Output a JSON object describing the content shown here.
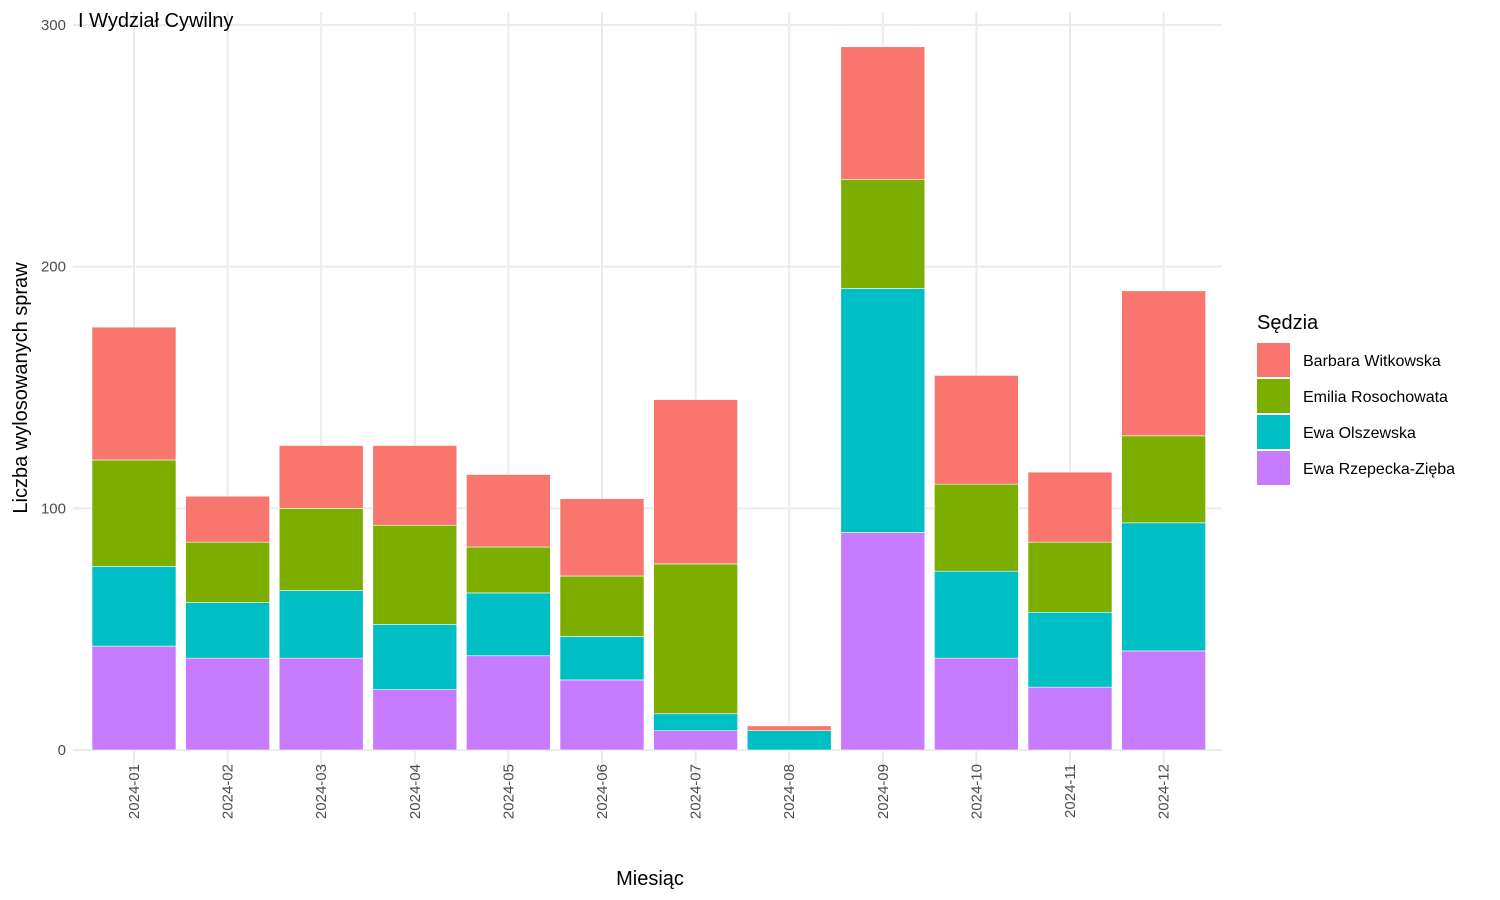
{
  "chart_data": {
    "type": "bar",
    "stacked": true,
    "title": "I Wydział Cywilny",
    "xlabel": "Miesiąc",
    "ylabel": "Liczba wylosowanych spraw",
    "ylim": [
      0,
      300
    ],
    "yticks": [
      0,
      100,
      200,
      300
    ],
    "grid": true,
    "legend": {
      "title": "Sędzia",
      "position": "right"
    },
    "categories": [
      "2024-01",
      "2024-02",
      "2024-03",
      "2024-04",
      "2024-05",
      "2024-06",
      "2024-07",
      "2024-08",
      "2024-09",
      "2024-10",
      "2024-11",
      "2024-12"
    ],
    "series": [
      {
        "name": "Ewa Rzepecka-Zięba",
        "color": "#C77CFF",
        "values": [
          43,
          38,
          38,
          25,
          39,
          29,
          8,
          0,
          90,
          38,
          26,
          41
        ]
      },
      {
        "name": "Ewa Olszewska",
        "color": "#00BFC4",
        "values": [
          33,
          23,
          28,
          27,
          26,
          18,
          7,
          8,
          101,
          36,
          31,
          53
        ]
      },
      {
        "name": "Emilia Rosochowata",
        "color": "#7CAE00",
        "values": [
          44,
          25,
          34,
          41,
          19,
          25,
          62,
          0,
          45,
          36,
          29,
          36
        ]
      },
      {
        "name": "Barbara Witkowska",
        "color": "#F8766D",
        "values": [
          55,
          19,
          26,
          33,
          30,
          32,
          68,
          2,
          55,
          45,
          29,
          60
        ]
      }
    ],
    "legend_order": [
      "Barbara Witkowska",
      "Emilia Rosochowata",
      "Ewa Olszewska",
      "Ewa Rzepecka-Zięba"
    ]
  }
}
